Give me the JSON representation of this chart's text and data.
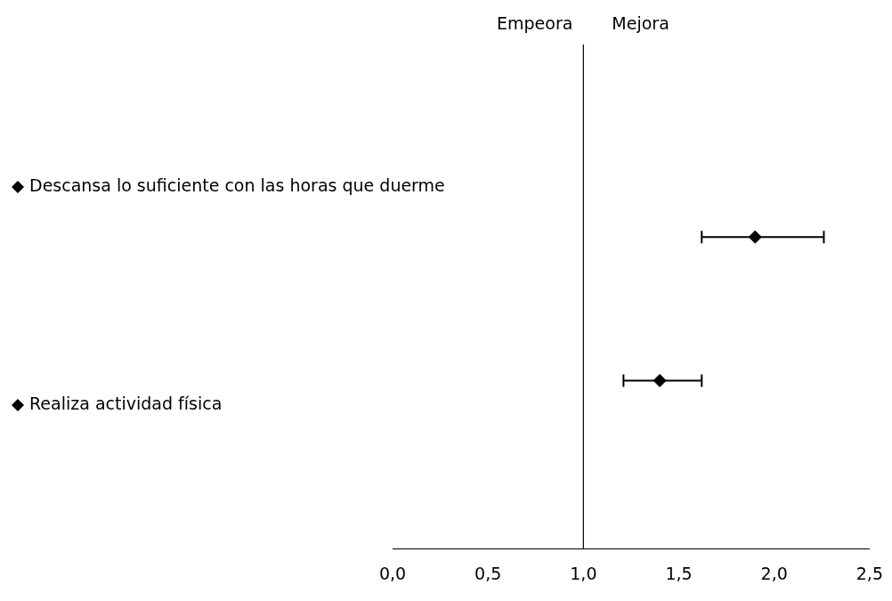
{
  "chart_data": {
    "type": "scatter",
    "orientation": "horizontal",
    "categories": [
      null,
      null
    ],
    "series": [
      {
        "name": "Descansa lo suficiente con las horas que duerme",
        "color": "#000000",
        "values": [
          1.9,
          null
        ],
        "errors": [
          [
            1.62,
            2.26
          ],
          null
        ]
      },
      {
        "name": "Realiza actividad física",
        "color": "#000000",
        "values": [
          null,
          1.4
        ],
        "errors": [
          null,
          [
            1.21,
            1.62
          ]
        ]
      }
    ],
    "xlim": [
      0,
      2.5
    ],
    "xticks": [
      {
        "value": 0,
        "label": "0,0"
      },
      {
        "value": 0.5,
        "label": "0,5"
      },
      {
        "value": 1,
        "label": "1,0"
      },
      {
        "value": 1.5,
        "label": "1,5"
      },
      {
        "value": 2,
        "label": "2,0"
      },
      {
        "value": 2.5,
        "label": "2,5"
      }
    ],
    "ref_lines": [
      {
        "axis": "x",
        "value": 1,
        "color": "#000000"
      }
    ],
    "annotations": [
      "Empeora",
      "Mejora"
    ],
    "marker": "diamond",
    "legend": "left",
    "grid": false
  }
}
